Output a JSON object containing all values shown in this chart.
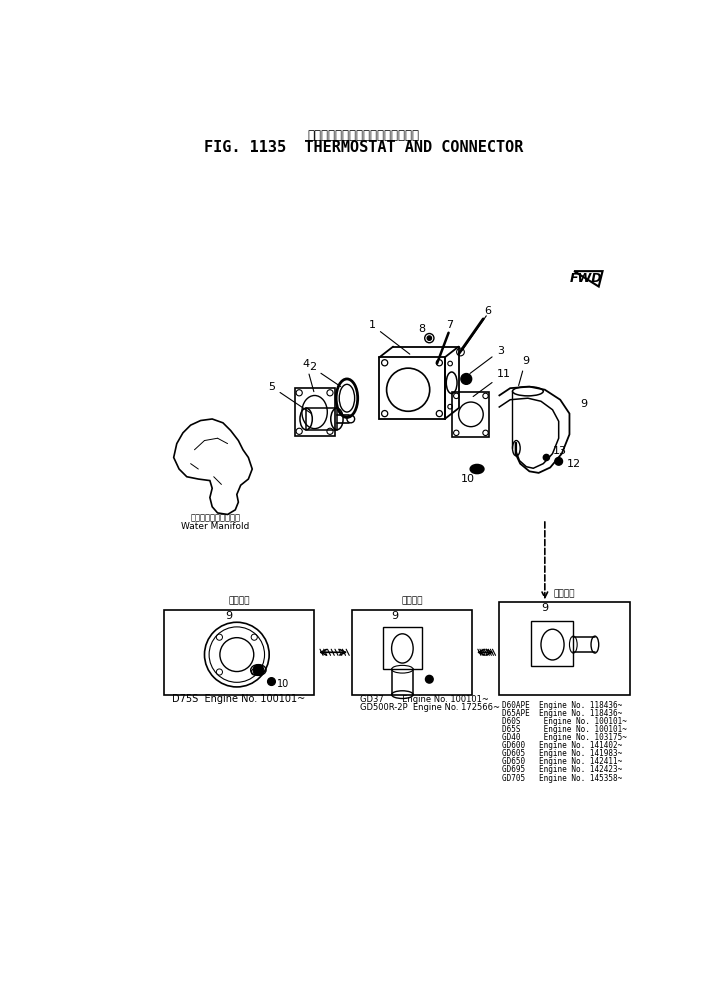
{
  "title_japanese": "サーモスタット　および　コネクタ",
  "title_english": "FIG. 1135  THERMOSTAT AND CONNECTOR",
  "bg_color": "#ffffff",
  "label_d75s_head": "適用番号",
  "label_d75s": "D75S  Engine No. 100101~",
  "label_gd37_head": "適用番号",
  "label_gd37_1": "GD37       Engine No. 100101~",
  "label_gd37_2": "GD500R-2P  Engine No. 172566~",
  "label_right_head": "適用番号",
  "label_water_manifold_jp": "ウォータマニホールド",
  "label_water_manifold_en": "Water Manifold",
  "right_labels": [
    "D60APE  Engine No. 118436~",
    "D65APE  Engine No. 118436~",
    "D60S     Engine No. 100101~",
    "D65S     Engine No. 100101~",
    "GD40     Engine No. 103175~",
    "GD600   Engine No. 141402~",
    "GD605   Engine No. 141983~",
    "GD650   Engine No. 142411~",
    "GD695   Engine No. 142423~",
    "GD705   Engine No. 145358~"
  ],
  "fwd_text": "FWD"
}
